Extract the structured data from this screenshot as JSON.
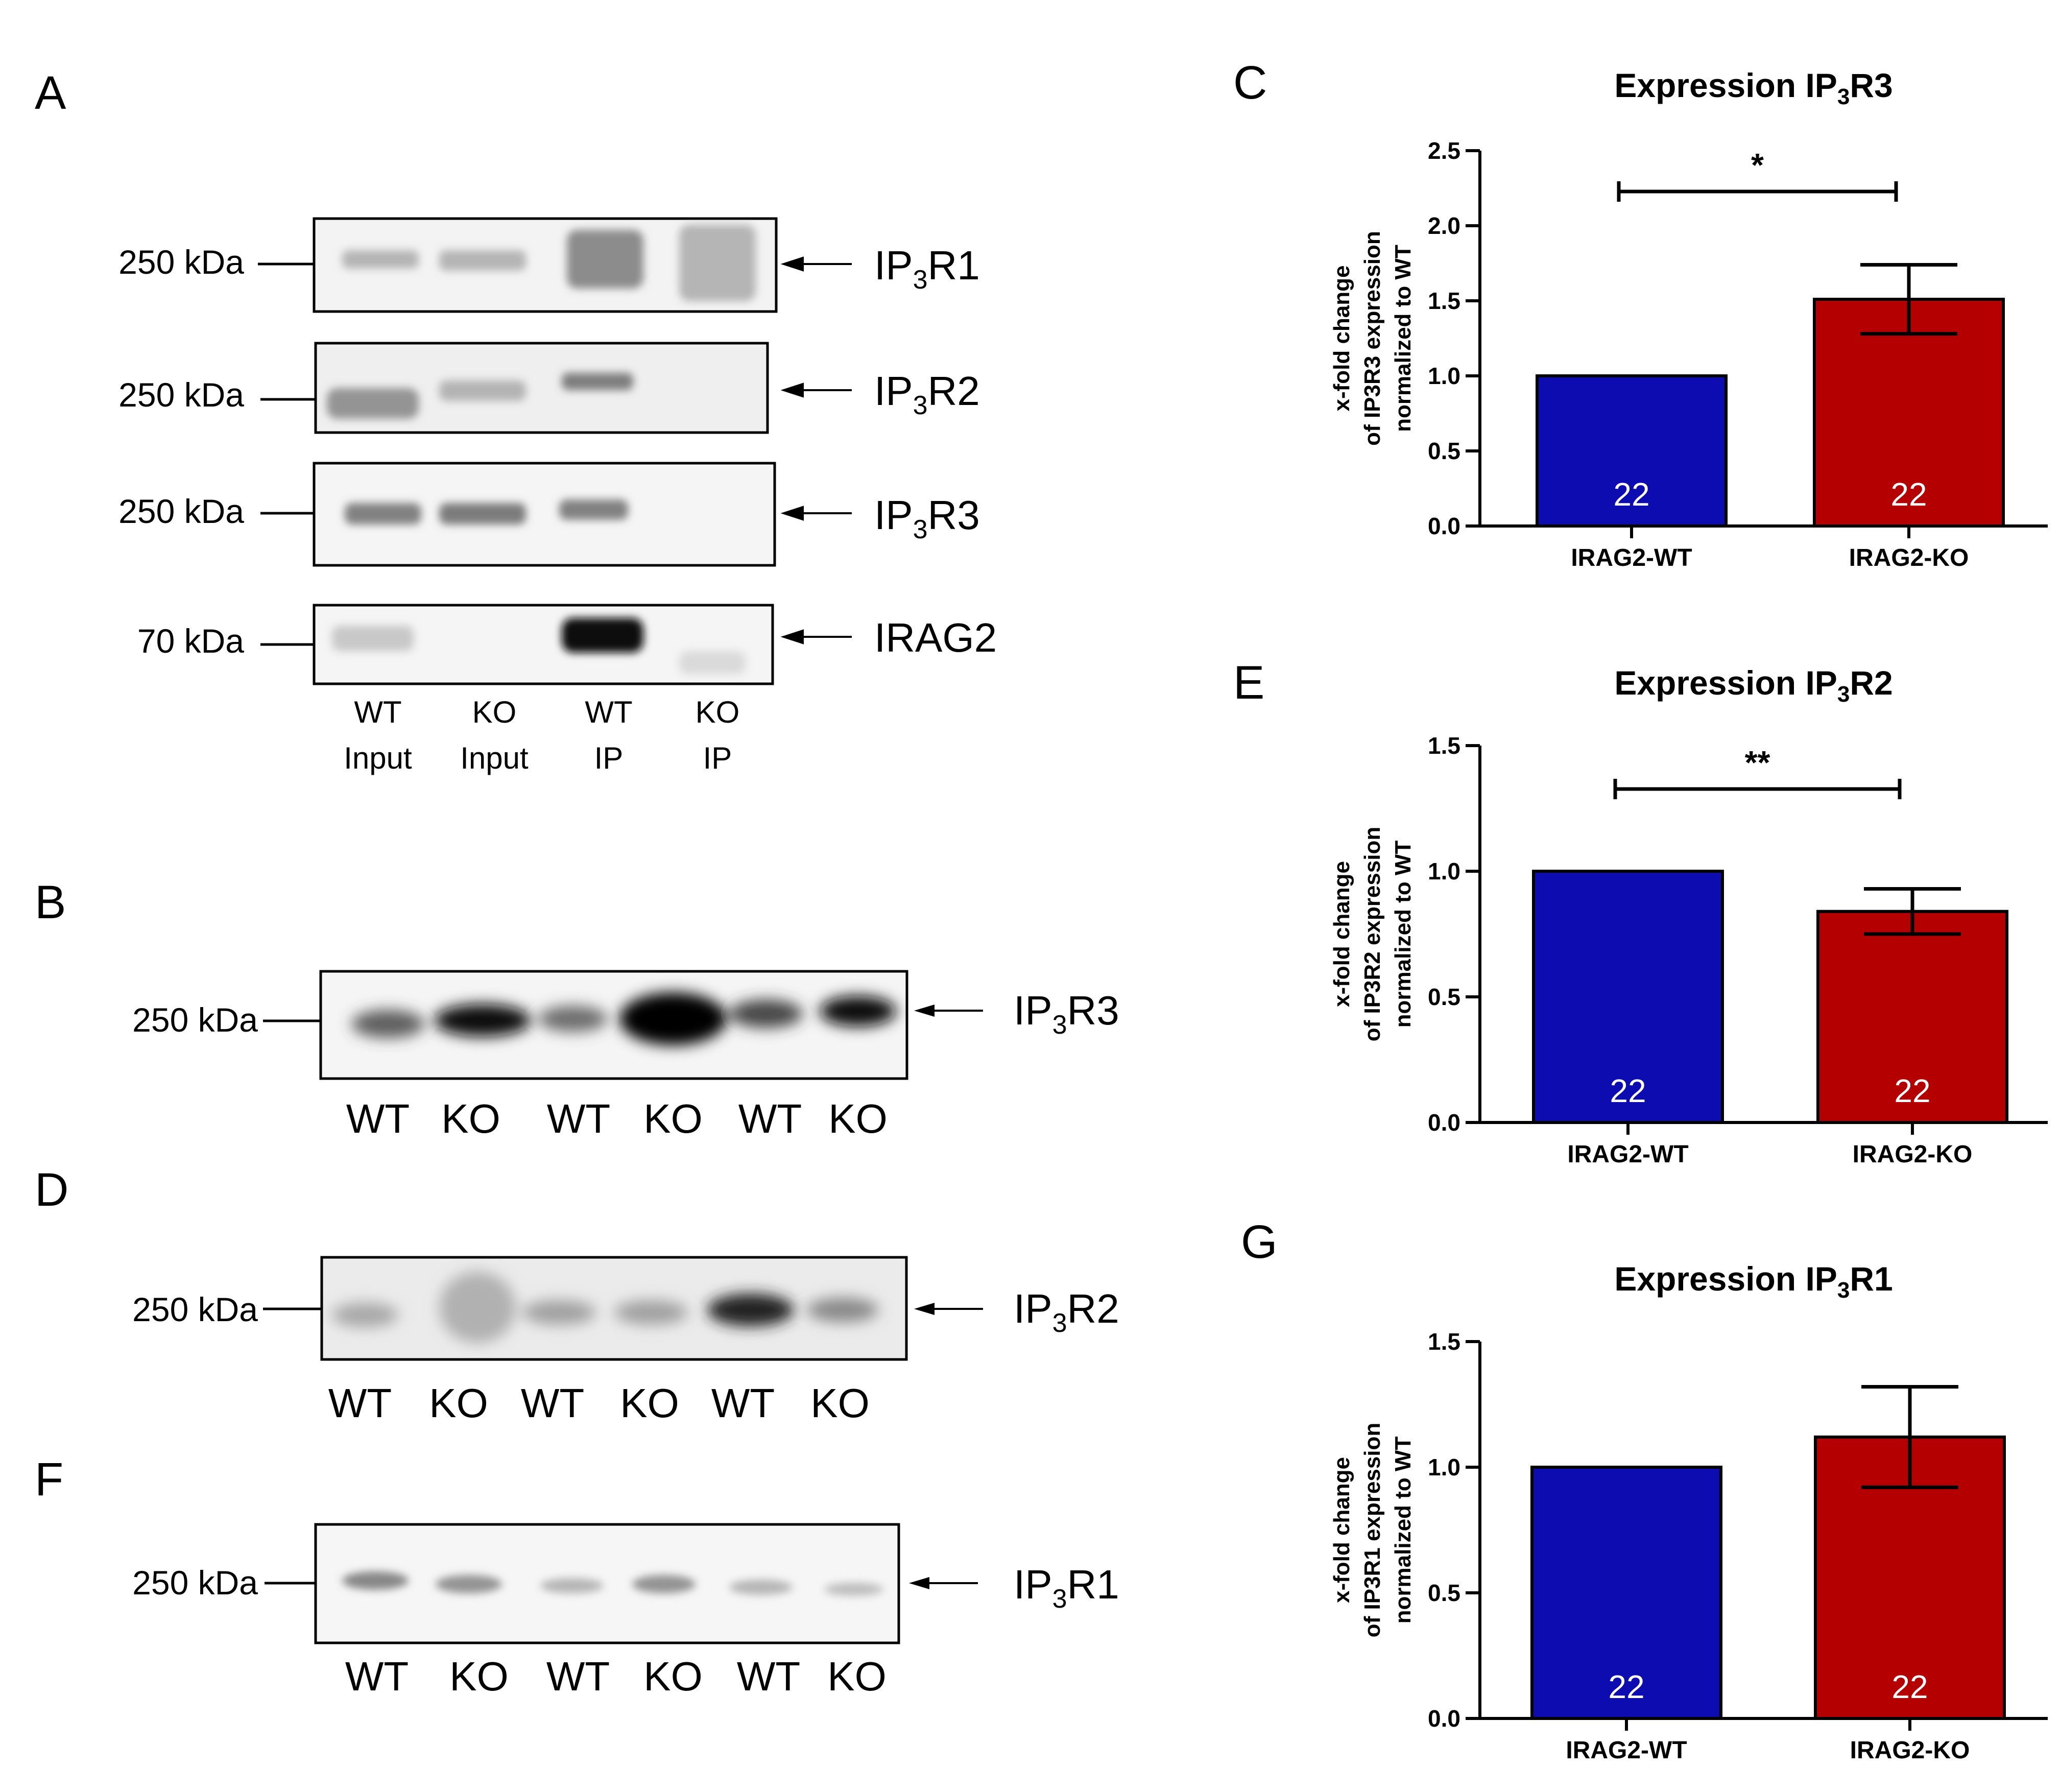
{
  "panels": {
    "A": {
      "letter": "A",
      "blots": [
        {
          "marker": "250 kDa",
          "target": "IP",
          "sub": "3",
          "target_tail": "R1"
        },
        {
          "marker": "250 kDa",
          "target": "IP",
          "sub": "3",
          "target_tail": "R2"
        },
        {
          "marker": "250 kDa",
          "target": "IP",
          "sub": "3",
          "target_tail": "R3"
        },
        {
          "marker": "70 kDa",
          "target": "IRAG2",
          "sub": "",
          "target_tail": ""
        }
      ],
      "lanes": [
        {
          "line1": "WT",
          "line2": "Input"
        },
        {
          "line1": "KO",
          "line2": "Input"
        },
        {
          "line1": "WT",
          "line2": "IP"
        },
        {
          "line1": "KO",
          "line2": "IP"
        }
      ]
    },
    "B": {
      "letter": "B",
      "marker": "250 kDa",
      "target": "IP",
      "sub": "3",
      "target_tail": "R3",
      "lanes": [
        "WT",
        "KO",
        "WT",
        "KO",
        "WT",
        "KO"
      ]
    },
    "D": {
      "letter": "D",
      "marker": "250 kDa",
      "target": "IP",
      "sub": "3",
      "target_tail": "R2",
      "lanes": [
        "WT",
        "KO",
        "WT",
        "KO",
        "WT",
        "KO"
      ]
    },
    "F": {
      "letter": "F",
      "marker": "250 kDa",
      "target": "IP",
      "sub": "3",
      "target_tail": "R1",
      "lanes": [
        "WT",
        "KO",
        "WT",
        "KO",
        "WT",
        "KO"
      ]
    }
  },
  "chart_data": [
    {
      "panel": "C",
      "type": "bar",
      "title": "Expression IP3R3",
      "title_main": "Expression IP",
      "title_sub": "3",
      "title_tail": "R3",
      "ylabel_lines": [
        "x-fold change",
        "of IP3R3 expression",
        "normalized to WT"
      ],
      "categories": [
        "IRAG2-WT",
        "IRAG2-KO"
      ],
      "values": [
        1.0,
        1.51
      ],
      "errors": [
        0,
        0.23
      ],
      "n_labels": [
        "22",
        "22"
      ],
      "ylim": [
        0,
        2.5
      ],
      "yticks": [
        "0.0",
        "0.5",
        "1.0",
        "1.5",
        "2.0",
        "2.5"
      ],
      "significance": "*",
      "colors": [
        "#0c0cb0",
        "#b40000"
      ]
    },
    {
      "panel": "E",
      "type": "bar",
      "title": "Expression IP3R2",
      "title_main": "Expression IP",
      "title_sub": "3",
      "title_tail": "R2",
      "ylabel_lines": [
        "x-fold change",
        "of IP3R2 expression",
        "normalized to WT"
      ],
      "categories": [
        "IRAG2-WT",
        "IRAG2-KO"
      ],
      "values": [
        1.0,
        0.84
      ],
      "errors": [
        0,
        0.09
      ],
      "n_labels": [
        "22",
        "22"
      ],
      "ylim": [
        0,
        1.5
      ],
      "yticks": [
        "0.0",
        "0.5",
        "1.0",
        "1.5"
      ],
      "significance": "**",
      "colors": [
        "#0c0cb0",
        "#b40000"
      ]
    },
    {
      "panel": "G",
      "type": "bar",
      "title": "Expression IP3R1",
      "title_main": "Expression IP",
      "title_sub": "3",
      "title_tail": "R1",
      "ylabel_lines": [
        "x-fold change",
        "of IP3R1 expression",
        "normalized to WT"
      ],
      "categories": [
        "IRAG2-WT",
        "IRAG2-KO"
      ],
      "values": [
        1.0,
        1.12
      ],
      "errors": [
        0,
        0.2
      ],
      "n_labels": [
        "22",
        "22"
      ],
      "ylim": [
        0,
        1.5
      ],
      "yticks": [
        "0.0",
        "0.5",
        "1.0",
        "1.5"
      ],
      "significance": "",
      "colors": [
        "#0c0cb0",
        "#b40000"
      ]
    }
  ]
}
